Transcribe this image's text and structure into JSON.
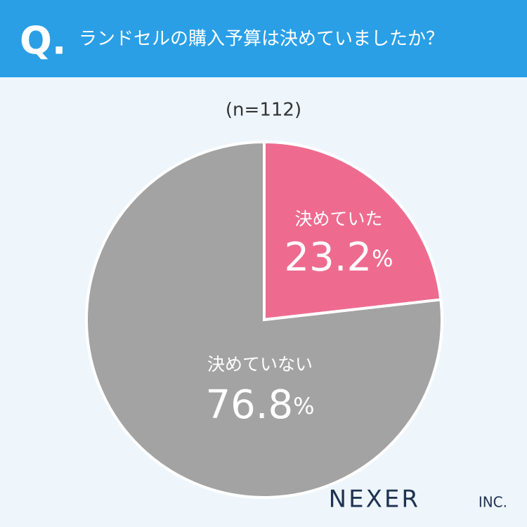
{
  "q_label": "Q.",
  "chart_data": {
    "type": "pie",
    "title": "ランドセルの購入予算は決めていましたか？",
    "subtitle": "(n=112)",
    "categories": [
      "決めていた",
      "決めていない"
    ],
    "values": [
      23.2,
      76.8
    ],
    "value_labels": [
      "23.2%",
      "76.8%"
    ],
    "colors": [
      "#ee6b8f",
      "#a3a3a3"
    ]
  },
  "logo": "NEXER",
  "logo_suffix": "INC."
}
